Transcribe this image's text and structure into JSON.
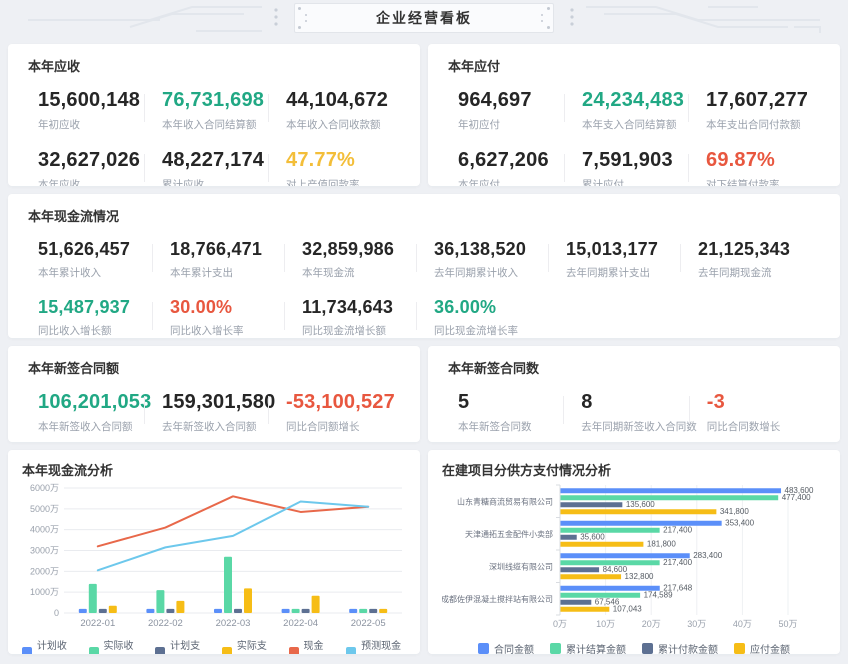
{
  "page": {
    "title": "企业经营看板"
  },
  "colors": {
    "accent_teal": "#21a884",
    "accent_red": "#e8573f",
    "accent_yellow": "#f3be39",
    "palette_blue": "#5B8FF9",
    "palette_green": "#5AD8A6",
    "palette_slate": "#5D7092",
    "palette_gold": "#F6BD16",
    "palette_redline": "#E8684A",
    "palette_skyline": "#6DC8EC"
  },
  "cards": {
    "receivable": {
      "title": "本年应收",
      "items": [
        {
          "value": "15,600,148",
          "label": "年初应收",
          "color": "dark"
        },
        {
          "value": "76,731,698",
          "label": "本年收入合同结算额",
          "color": "teal"
        },
        {
          "value": "44,104,672",
          "label": "本年收入合同收款额",
          "color": "dark"
        },
        {
          "value": "32,627,026",
          "label": "本年应收",
          "color": "dark"
        },
        {
          "value": "48,227,174",
          "label": "累计应收",
          "color": "dark"
        },
        {
          "value": "47.77%",
          "label": "对上产值回款率",
          "color": "yellow"
        }
      ]
    },
    "payable": {
      "title": "本年应付",
      "items": [
        {
          "value": "964,697",
          "label": "年初应付",
          "color": "dark"
        },
        {
          "value": "24,234,483",
          "label": "本年支入合同结算额",
          "color": "teal"
        },
        {
          "value": "17,607,277",
          "label": "本年支出合同付款额",
          "color": "dark"
        },
        {
          "value": "6,627,206",
          "label": "本年应付",
          "color": "dark"
        },
        {
          "value": "7,591,903",
          "label": "累计应付",
          "color": "dark"
        },
        {
          "value": "69.87%",
          "label": "对下结算付款率",
          "color": "red"
        }
      ]
    },
    "cashflow": {
      "title": "本年现金流情况",
      "items": [
        {
          "value": "51,626,457",
          "label": "本年累计收入",
          "color": "dark"
        },
        {
          "value": "18,766,471",
          "label": "本年累计支出",
          "color": "dark"
        },
        {
          "value": "32,859,986",
          "label": "本年现金流",
          "color": "dark"
        },
        {
          "value": "36,138,520",
          "label": "去年同期累计收入",
          "color": "dark"
        },
        {
          "value": "15,013,177",
          "label": "去年同期累计支出",
          "color": "dark"
        },
        {
          "value": "21,125,343",
          "label": "去年同期现金流",
          "color": "dark"
        },
        {
          "value": "15,487,937",
          "label": "同比收入增长额",
          "color": "teal"
        },
        {
          "value": "30.00%",
          "label": "同比收入增长率",
          "color": "red"
        },
        {
          "value": "11,734,643",
          "label": "同比现金流增长额",
          "color": "dark"
        },
        {
          "value": "36.00%",
          "label": "同比现金流增长率",
          "color": "teal"
        }
      ]
    },
    "contract_amount": {
      "title": "本年新签合同额",
      "items": [
        {
          "value": "106,201,053",
          "label": "本年新签收入合同额",
          "color": "teal"
        },
        {
          "value": "159,301,580",
          "label": "去年新签收入合同额",
          "color": "dark"
        },
        {
          "value": "-53,100,527",
          "label": "同比合同额增长",
          "color": "red"
        }
      ]
    },
    "contract_count": {
      "title": "本年新签合同数",
      "items": [
        {
          "value": "5",
          "label": "本年新签合同数",
          "color": "dark"
        },
        {
          "value": "8",
          "label": "去年同期新签收入合同数",
          "color": "dark"
        },
        {
          "value": "-3",
          "label": "同比合同数增长",
          "color": "red"
        }
      ]
    }
  },
  "chart_data": [
    {
      "type": "bar+line",
      "title": "本年现金流分析",
      "categories": [
        "2022-01",
        "2022-02",
        "2022-03",
        "2022-04",
        "2022-05"
      ],
      "unit": "万",
      "ylim": [
        0,
        6000
      ],
      "yticks": [
        "0",
        "1000万",
        "2000万",
        "3000万",
        "4000万",
        "5000万",
        "6000万"
      ],
      "grid": true,
      "legend_position": "bottom",
      "series": [
        {
          "name": "计划收入",
          "kind": "bar",
          "color": "#5B8FF9",
          "values": [
            200,
            200,
            200,
            200,
            200
          ]
        },
        {
          "name": "实际收入",
          "kind": "bar",
          "color": "#5AD8A6",
          "values": [
            1400,
            1100,
            2700,
            200,
            200
          ]
        },
        {
          "name": "计划支出",
          "kind": "bar",
          "color": "#5D7092",
          "values": [
            200,
            200,
            200,
            200,
            200
          ]
        },
        {
          "name": "实际支出",
          "kind": "bar",
          "color": "#F6BD16",
          "values": [
            350,
            580,
            1180,
            830,
            200
          ]
        },
        {
          "name": "现金流",
          "kind": "line",
          "color": "#E8684A",
          "values": [
            3200,
            4100,
            5600,
            4850,
            5100
          ]
        },
        {
          "name": "预测现金流",
          "kind": "line",
          "color": "#6DC8EC",
          "values": [
            2050,
            3150,
            3700,
            5350,
            5100
          ]
        }
      ]
    },
    {
      "type": "bar",
      "orientation": "horizontal",
      "title": "在建项目分供方支付情况分析",
      "categories": [
        "山东青糖商流贸易有限公司",
        "天津通拓五金配件小卖部",
        "深圳线缆有限公司",
        "成都佐伊混凝土搅拌站有限公司"
      ],
      "xlim": [
        0,
        500000
      ],
      "xticks": [
        "0万",
        "10万",
        "20万",
        "30万",
        "40万",
        "50万"
      ],
      "grid": true,
      "legend_position": "bottom",
      "series": [
        {
          "name": "合同金额",
          "color": "#5B8FF9",
          "values": [
            483600,
            353400,
            283400,
            217648
          ],
          "labels": [
            "483,600",
            "353,400",
            "283,400",
            "217,648"
          ]
        },
        {
          "name": "累计结算金额",
          "color": "#5AD8A6",
          "values": [
            477400,
            217400,
            217400,
            174589
          ],
          "labels": [
            "477,400",
            "217,400",
            "217,400",
            "174,589"
          ]
        },
        {
          "name": "累计付款金额",
          "color": "#5D7092",
          "values": [
            135600,
            35600,
            84600,
            67546
          ],
          "labels": [
            "135,600",
            "35,600",
            "84,600",
            "67,546"
          ]
        },
        {
          "name": "应付金额",
          "color": "#F6BD16",
          "values": [
            341800,
            181800,
            132800,
            107043
          ],
          "labels": [
            "341,800",
            "181,800",
            "132,800",
            "107,043"
          ]
        }
      ]
    }
  ]
}
